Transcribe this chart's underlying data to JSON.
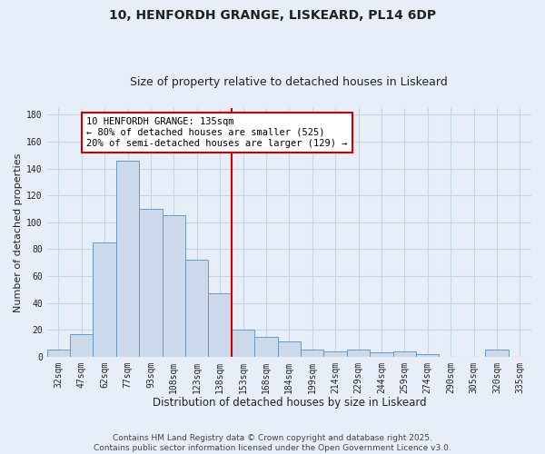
{
  "title": "10, HENFORDH GRANGE, LISKEARD, PL14 6DP",
  "subtitle": "Size of property relative to detached houses in Liskeard",
  "xlabel": "Distribution of detached houses by size in Liskeard",
  "ylabel": "Number of detached properties",
  "bar_labels": [
    "32sqm",
    "47sqm",
    "62sqm",
    "77sqm",
    "93sqm",
    "108sqm",
    "123sqm",
    "138sqm",
    "153sqm",
    "168sqm",
    "184sqm",
    "199sqm",
    "214sqm",
    "229sqm",
    "244sqm",
    "259sqm",
    "274sqm",
    "290sqm",
    "305sqm",
    "320sqm",
    "335sqm"
  ],
  "bar_values": [
    5,
    17,
    85,
    146,
    110,
    105,
    72,
    47,
    20,
    15,
    11,
    5,
    4,
    5,
    3,
    4,
    2,
    0,
    0,
    5,
    0
  ],
  "bar_color": "#ccd9ea",
  "bar_edge_color": "#6699cc",
  "vline_color": "#cc0000",
  "annotation_text": "10 HENFORDH GRANGE: 135sqm\n← 80% of detached houses are smaller (525)\n20% of semi-detached houses are larger (129) →",
  "annotation_box_color": "#ffffff",
  "annotation_box_edge_color": "#cc0000",
  "ylim": [
    0,
    185
  ],
  "yticks": [
    0,
    20,
    40,
    60,
    80,
    100,
    120,
    140,
    160,
    180
  ],
  "grid_color": "#c5d5e8",
  "background_color": "#e8eef8",
  "footer_line1": "Contains HM Land Registry data © Crown copyright and database right 2025.",
  "footer_line2": "Contains public sector information licensed under the Open Government Licence v3.0.",
  "title_fontsize": 10,
  "subtitle_fontsize": 9,
  "xlabel_fontsize": 8.5,
  "ylabel_fontsize": 8,
  "tick_fontsize": 7,
  "annot_fontsize": 7.5,
  "footer_fontsize": 6.5
}
